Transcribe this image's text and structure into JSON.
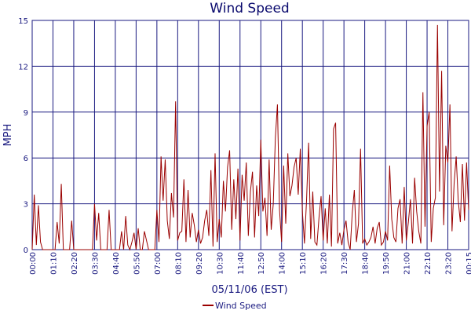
{
  "chart_data": {
    "type": "line",
    "title": "Wind Speed",
    "xlabel": "05/11/06 (EST)",
    "ylabel": "MPH",
    "ylim": [
      0,
      15
    ],
    "yticks": [
      0,
      3,
      6,
      9,
      12,
      15
    ],
    "xticks": [
      "00:00",
      "01:10",
      "02:20",
      "03:30",
      "04:40",
      "05:50",
      "07:00",
      "08:10",
      "09:20",
      "10:30",
      "11:40",
      "12:50",
      "14:00",
      "15:10",
      "16:20",
      "17:30",
      "18:40",
      "19:50",
      "21:00",
      "22:10",
      "23:20",
      "00:15"
    ],
    "legend_position": "bottom-center",
    "grid": true,
    "colors": {
      "series": "#9a0000",
      "grid": "#1a1a80",
      "text": "#1a1a80"
    },
    "series": [
      {
        "name": "Wind Speed",
        "x_minutes_step": 10,
        "values": [
          0,
          3.6,
          0.3,
          2.9,
          0.5,
          0,
          0,
          0,
          0,
          0,
          0,
          0,
          1.8,
          0.4,
          4.3,
          0,
          0,
          0,
          0,
          1.9,
          0,
          0,
          0,
          0,
          0,
          0,
          0,
          0,
          0,
          0,
          3.0,
          0.6,
          2.4,
          0,
          0,
          0,
          0,
          2.6,
          0,
          0,
          0,
          0,
          0,
          1.2,
          0,
          2.2,
          0.3,
          0,
          0.5,
          1.1,
          0,
          1.4,
          0,
          0,
          1.2,
          0.6,
          0,
          0,
          0,
          0,
          2.6,
          0.5,
          6.1,
          3.2,
          5.9,
          1.9,
          0.7,
          3.7,
          2.1,
          9.7,
          0.6,
          1.1,
          1.2,
          4.6,
          0.5,
          3.9,
          0.8,
          2.4,
          1.6,
          0.5,
          1.3,
          0.4,
          0.8,
          1.9,
          2.6,
          0.9,
          5.2,
          0.2,
          6.3,
          0.5,
          2.0,
          0.8,
          4.5,
          2.5,
          5.4,
          6.5,
          1.3,
          4.6,
          2.0,
          5.3,
          0.6,
          4.9,
          3.2,
          5.7,
          0.9,
          3.8,
          5.1,
          0.8,
          4.2,
          2.2,
          7.2,
          2.5,
          3.4,
          0.9,
          5.9,
          1.3,
          3.0,
          7.3,
          9.5,
          2.6,
          0.5,
          5.5,
          1.7,
          6.3,
          3.5,
          4.2,
          5.4,
          6.0,
          3.6,
          6.6,
          2.5,
          0.4,
          3.2,
          7.0,
          0.7,
          3.8,
          0.5,
          0.3,
          2.1,
          3.5,
          0.6,
          2.7,
          0.4,
          3.6,
          0.2,
          7.9,
          8.3,
          0.4,
          1.1,
          0.3,
          1.3,
          1.9,
          0.5,
          0,
          2.4,
          3.9,
          0.5,
          1.7,
          6.6,
          0.4,
          0.7,
          0.3,
          0.5,
          0.8,
          1.5,
          0.4,
          1.4,
          1.8,
          0.3,
          0.5,
          1.2,
          0.6,
          5.5,
          2.0,
          0.8,
          0.5,
          2.7,
          3.3,
          0.4,
          4.1,
          0.6,
          1.8,
          3.3,
          0.4,
          4.7,
          2.5,
          1.2,
          0.4,
          10.3,
          1.5,
          8.1,
          9.0,
          0.5,
          2.7,
          3.4,
          14.7,
          3.8,
          11.7,
          1.6,
          6.8,
          5.7,
          9.5,
          1.2,
          4.3,
          6.1,
          3.2,
          1.8,
          5.6,
          1.9,
          5.7,
          2.6
        ]
      }
    ]
  }
}
